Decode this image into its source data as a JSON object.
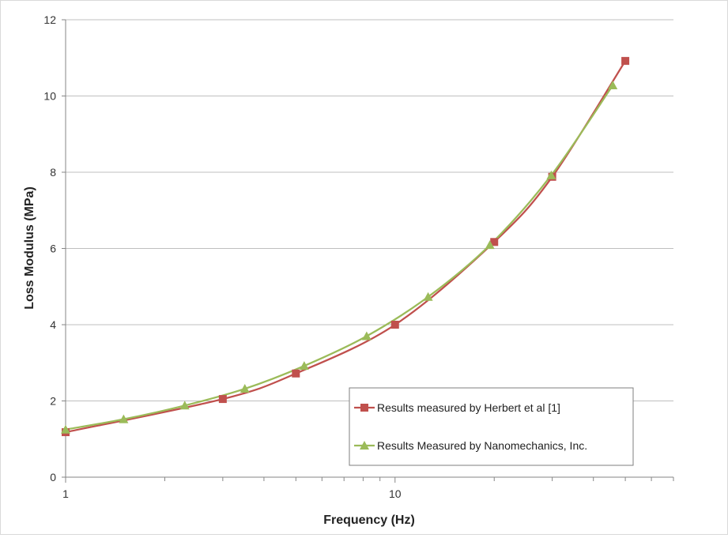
{
  "chart_data": {
    "type": "line",
    "title": "",
    "xlabel": "Frequency (Hz)",
    "ylabel": "Loss Modulus (MPa)",
    "xscale": "log",
    "xlim": [
      1,
      70
    ],
    "ylim": [
      0,
      12
    ],
    "xticks": [
      1,
      10
    ],
    "xtick_labels": [
      "1",
      "10"
    ],
    "yticks": [
      0,
      2,
      4,
      6,
      8,
      10,
      12
    ],
    "ytick_labels": [
      "0",
      "2",
      "4",
      "6",
      "8",
      "10",
      "12"
    ],
    "grid": "horizontal",
    "legend_position": "lower-right",
    "series": [
      {
        "name": "Results measured by Herbert et al [1]",
        "color": "#c0504d",
        "marker": "square",
        "x": [
          1,
          3,
          5,
          10,
          20,
          30,
          50
        ],
        "y": [
          1.18,
          2.05,
          2.72,
          4.0,
          6.17,
          7.88,
          10.92
        ]
      },
      {
        "name": "Results Measured by Nanomechanics, Inc.",
        "color": "#9bbb59",
        "marker": "triangle",
        "x": [
          1,
          1.5,
          2.3,
          3.5,
          5.3,
          8.2,
          12.6,
          19.4,
          29.8,
          45.8
        ],
        "y": [
          1.25,
          1.52,
          1.88,
          2.32,
          2.92,
          3.7,
          4.73,
          6.09,
          7.92,
          10.28
        ]
      }
    ]
  }
}
